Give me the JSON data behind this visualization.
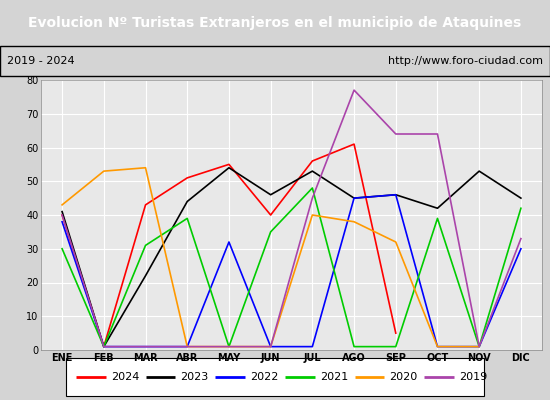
{
  "title": "Evolucion Nº Turistas Extranjeros en el municipio de Ataquines",
  "subtitle_left": "2019 - 2024",
  "subtitle_right": "http://www.foro-ciudad.com",
  "x_labels": [
    "ENE",
    "FEB",
    "MAR",
    "ABR",
    "MAY",
    "JUN",
    "JUL",
    "AGO",
    "SEP",
    "OCT",
    "NOV",
    "DIC"
  ],
  "ylim": [
    0,
    80
  ],
  "yticks": [
    0,
    10,
    20,
    30,
    40,
    50,
    60,
    70,
    80
  ],
  "series": {
    "2024": {
      "color": "#ff0000",
      "values": [
        40,
        1,
        43,
        51,
        55,
        40,
        56,
        61,
        5,
        null,
        null,
        null
      ]
    },
    "2023": {
      "color": "#000000",
      "values": [
        41,
        1,
        22,
        44,
        54,
        46,
        53,
        45,
        46,
        42,
        53,
        45
      ]
    },
    "2022": {
      "color": "#0000ff",
      "values": [
        38,
        1,
        1,
        1,
        32,
        1,
        1,
        45,
        46,
        1,
        1,
        30
      ]
    },
    "2021": {
      "color": "#00cc00",
      "values": [
        30,
        1,
        31,
        39,
        1,
        35,
        48,
        1,
        1,
        39,
        1,
        42
      ]
    },
    "2020": {
      "color": "#ff9900",
      "values": [
        43,
        53,
        54,
        1,
        1,
        1,
        40,
        38,
        32,
        1,
        1,
        null
      ]
    },
    "2019": {
      "color": "#aa44aa",
      "values": [
        40,
        1,
        1,
        1,
        1,
        1,
        45,
        77,
        64,
        64,
        1,
        33
      ]
    }
  },
  "legend_order": [
    "2024",
    "2023",
    "2022",
    "2021",
    "2020",
    "2019"
  ],
  "title_bg_color": "#4472c4",
  "title_text_color": "#ffffff",
  "plot_bg_color": "#e8e8e8",
  "outer_bg_color": "#d4d4d4",
  "grid_color": "#ffffff"
}
